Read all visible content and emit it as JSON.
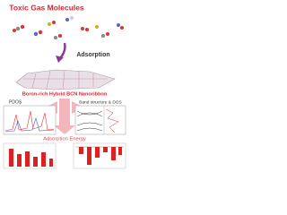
{
  "header": {
    "title": "Toxic Gas Molecules"
  },
  "labels": {
    "adsorption": "Adsorption",
    "substrate": "Boron-rich Hybrid BCN Nanoribbon",
    "adsorption_energy": "Adsorption Energy"
  },
  "panels": [
    {
      "title": "PDOS"
    },
    {
      "title": "Band structure & DOS"
    }
  ]
}
